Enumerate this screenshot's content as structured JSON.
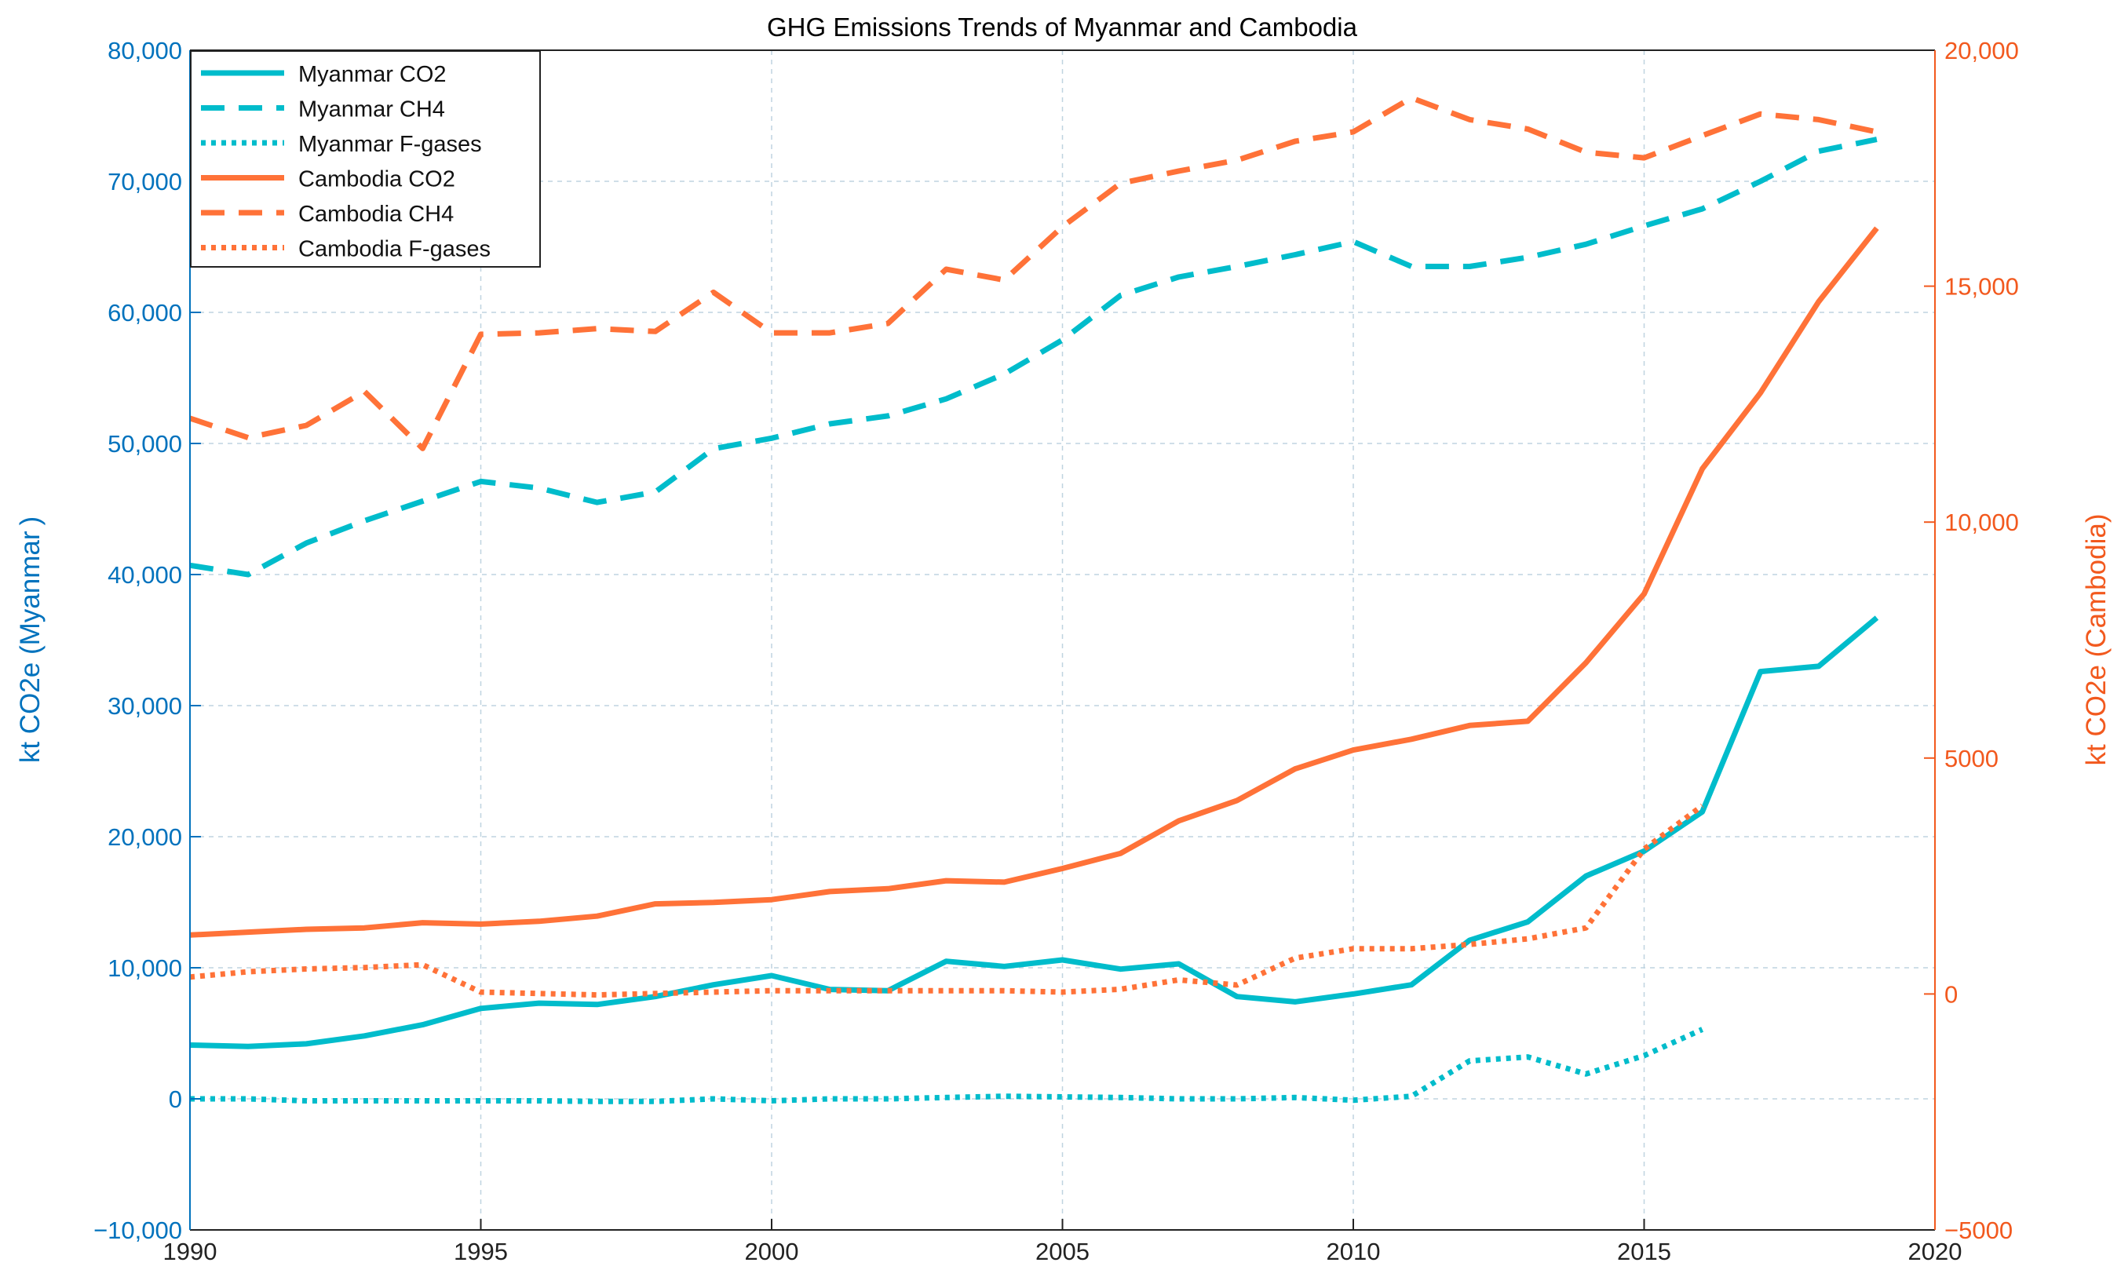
{
  "chart_data": {
    "type": "line",
    "title": "GHG Emissions Trends of Myanmar and Cambodia",
    "xlabel": "",
    "ylabel_left": "kt CO2e (Myanmar )",
    "ylabel_right": "kt CO2e (Cambodia)",
    "xlim": [
      1990,
      2020
    ],
    "ylim_left": [
      -10000,
      80000
    ],
    "ylim_right": [
      -5000,
      20000
    ],
    "grid": true,
    "legend_position": "top-left",
    "x_ticks": [
      1990,
      1995,
      2000,
      2005,
      2010,
      2015,
      2020
    ],
    "x_tick_labels": [
      "1990",
      "1995",
      "2000",
      "2005",
      "2010",
      "2015",
      "2020"
    ],
    "left_ticks": [
      -10000,
      0,
      10000,
      20000,
      30000,
      40000,
      50000,
      60000,
      70000,
      80000
    ],
    "left_tick_labels": [
      "−10,000",
      "0",
      "10,000",
      "20,000",
      "30,000",
      "40,000",
      "50,000",
      "60,000",
      "70,000",
      "80,000"
    ],
    "right_ticks": [
      -5000,
      0,
      5000,
      10000,
      15000,
      20000
    ],
    "right_tick_labels": [
      "−5000",
      "0",
      "5000",
      "10,000",
      "15,000",
      "20,000"
    ],
    "colors": {
      "myanmar": "#00BCCB",
      "cambodia": "#FF7238",
      "left_axis": "#0072BD",
      "right_axis": "#F2591E"
    },
    "series": [
      {
        "name": "Myanmar CO2",
        "axis": "left",
        "style": "solid",
        "color": "#00BCCB",
        "x": [
          1990,
          1991,
          1992,
          1993,
          1994,
          1995,
          1996,
          1997,
          1998,
          1999,
          2000,
          2001,
          2002,
          2003,
          2004,
          2005,
          2006,
          2007,
          2008,
          2009,
          2010,
          2011,
          2012,
          2013,
          2014,
          2015,
          2016,
          2017,
          2018,
          2019
        ],
        "values": [
          4100,
          4000,
          4200,
          4800,
          5650,
          6900,
          7300,
          7200,
          7800,
          8700,
          9400,
          8350,
          8250,
          10500,
          10100,
          10600,
          9900,
          10300,
          7800,
          7400,
          8000,
          8700,
          12100,
          13500,
          17000,
          18900,
          21900,
          32600,
          33000,
          36700
        ]
      },
      {
        "name": "Myanmar CH4",
        "axis": "left",
        "style": "dashed",
        "color": "#00BCCB",
        "x": [
          1990,
          1991,
          1992,
          1993,
          1994,
          1995,
          1996,
          1997,
          1998,
          1999,
          2000,
          2001,
          2002,
          2003,
          2004,
          2005,
          2006,
          2007,
          2008,
          2009,
          2010,
          2011,
          2012,
          2013,
          2014,
          2015,
          2016,
          2017,
          2018,
          2019
        ],
        "values": [
          40700,
          40000,
          42400,
          44100,
          45600,
          47100,
          46600,
          45500,
          46300,
          49600,
          50400,
          51500,
          52100,
          53400,
          55300,
          57900,
          61300,
          62700,
          63500,
          64400,
          65400,
          63500,
          63500,
          64200,
          65200,
          66600,
          67900,
          70000,
          72300,
          73200
        ]
      },
      {
        "name": "Myanmar F-gases",
        "axis": "left",
        "style": "dotted",
        "color": "#00BCCB",
        "x": [
          1990,
          1991,
          1992,
          1993,
          1994,
          1995,
          1996,
          1997,
          1998,
          1999,
          2000,
          2001,
          2002,
          2003,
          2004,
          2005,
          2006,
          2007,
          2008,
          2009,
          2010,
          2011,
          2012,
          2013,
          2014,
          2015,
          2016
        ],
        "values": [
          0,
          0,
          -150,
          -150,
          -150,
          -150,
          -150,
          -200,
          -200,
          0,
          -150,
          0,
          0,
          100,
          200,
          150,
          100,
          0,
          0,
          100,
          -100,
          200,
          2900,
          3200,
          1900,
          3300,
          5300
        ]
      },
      {
        "name": "Cambodia CO2",
        "axis": "right",
        "style": "solid",
        "color": "#FF7238",
        "x": [
          1990,
          1991,
          1992,
          1993,
          1994,
          1995,
          1996,
          1997,
          1998,
          1999,
          2000,
          2001,
          2002,
          2003,
          2004,
          2005,
          2006,
          2007,
          2008,
          2009,
          2010,
          2011,
          2012,
          2013,
          2014,
          2015,
          2016,
          2017,
          2018,
          2019
        ],
        "values": [
          1250,
          1310,
          1370,
          1400,
          1510,
          1480,
          1540,
          1650,
          1910,
          1940,
          2000,
          2170,
          2230,
          2400,
          2370,
          2660,
          2980,
          3670,
          4100,
          4770,
          5170,
          5400,
          5690,
          5780,
          7020,
          8480,
          11130,
          12740,
          14670,
          16230
        ]
      },
      {
        "name": "Cambodia CH4",
        "axis": "right",
        "style": "dashed",
        "color": "#FF7238",
        "x": [
          1990,
          1991,
          1992,
          1993,
          1994,
          1995,
          1996,
          1997,
          1998,
          1999,
          2000,
          2001,
          2002,
          2003,
          2004,
          2005,
          2006,
          2007,
          2008,
          2009,
          2010,
          2011,
          2012,
          2013,
          2014,
          2015,
          2016,
          2017,
          2018,
          2019
        ],
        "values": [
          12200,
          11790,
          12050,
          12770,
          11560,
          13980,
          14010,
          14100,
          14040,
          14870,
          14010,
          14010,
          14210,
          15360,
          15130,
          16260,
          17180,
          17440,
          17670,
          18070,
          18270,
          18990,
          18530,
          18330,
          17840,
          17720,
          18190,
          18650,
          18530,
          18270
        ]
      },
      {
        "name": "Cambodia F-gases",
        "axis": "right",
        "style": "dotted",
        "color": "#FF7238",
        "x": [
          1990,
          1991,
          1992,
          1993,
          1994,
          1995,
          1996,
          1997,
          1998,
          1999,
          2000,
          2001,
          2002,
          2003,
          2004,
          2005,
          2006,
          2007,
          2008,
          2009,
          2010,
          2011,
          2012,
          2013,
          2014,
          2015,
          2016
        ],
        "values": [
          360,
          470,
          530,
          560,
          620,
          40,
          10,
          -20,
          10,
          40,
          70,
          70,
          70,
          70,
          70,
          40,
          100,
          300,
          190,
          760,
          960,
          960,
          1050,
          1170,
          1400,
          3070,
          3990
        ]
      }
    ]
  }
}
